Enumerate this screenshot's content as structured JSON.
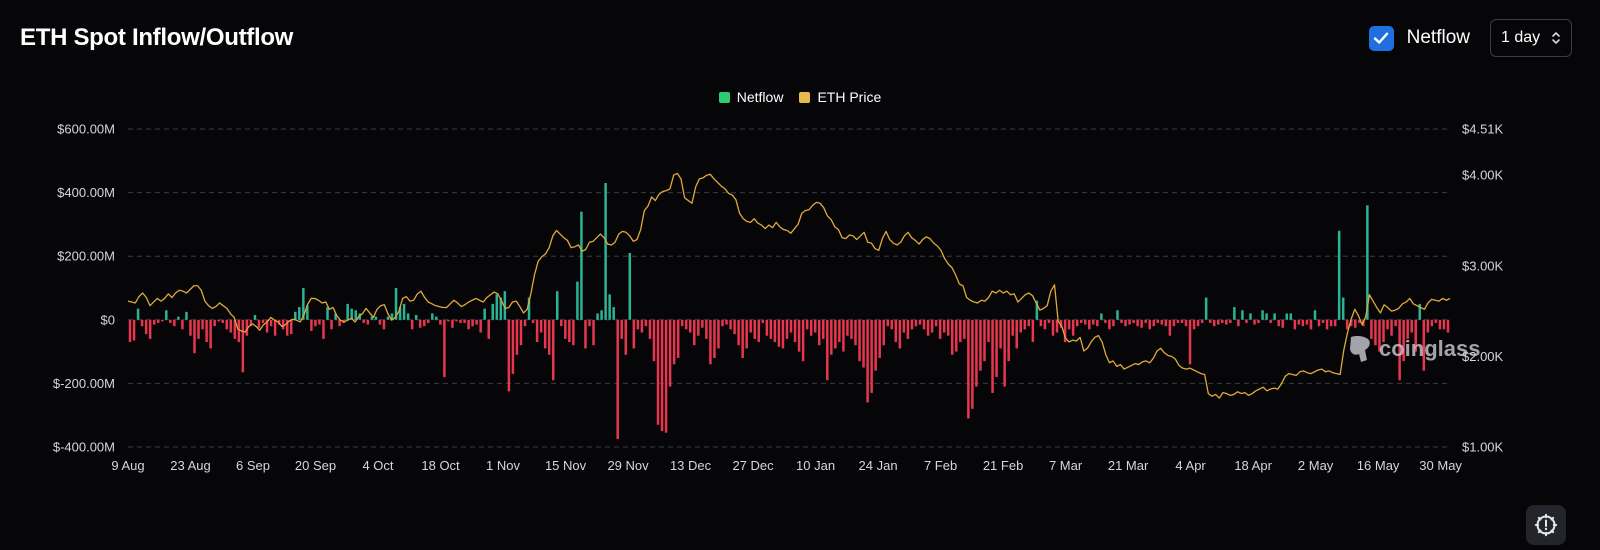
{
  "header": {
    "title": "ETH Spot Inflow/Outflow",
    "netflow_toggle_label": "Netflow",
    "netflow_checked": true,
    "interval_value": "1 day"
  },
  "watermark": {
    "text": "coinglass"
  },
  "colors": {
    "positive": "#2bb395",
    "negative": "#e8364f",
    "price": "#e0a93a",
    "checkbox": "#1f6fe0",
    "legend_netflow": "#2ecc71",
    "legend_price": "#e8b84a"
  },
  "icons": {
    "checkbox": "checkmark-icon",
    "select": "chevron-up-down-icon",
    "settings": "settings-alert-icon",
    "watermark": "coinglass-logo-icon"
  },
  "chart_data": {
    "type": "bar",
    "title": "ETH Spot Inflow/Outflow",
    "legend": [
      "Netflow",
      "ETH Price"
    ],
    "legend_position": "top-center",
    "grid": true,
    "x_tick_labels": [
      "9 Aug",
      "23 Aug",
      "6 Sep",
      "20 Sep",
      "4 Oct",
      "18 Oct",
      "1 Nov",
      "15 Nov",
      "29 Nov",
      "13 Dec",
      "27 Dec",
      "10 Jan",
      "24 Jan",
      "7 Feb",
      "21 Feb",
      "7 Mar",
      "21 Mar",
      "4 Apr",
      "18 Apr",
      "2 May",
      "16 May",
      "30 May"
    ],
    "x_range_days": [
      0,
      298
    ],
    "y_left": {
      "ylim": [
        -400,
        600
      ],
      "unit": "USD millions",
      "ticks": [
        600,
        400,
        200,
        0,
        -200,
        -400
      ],
      "tick_labels": [
        "$600.00M",
        "$400.00M",
        "$200.00M",
        "$0",
        "$-200.00M",
        "$-400.00M"
      ]
    },
    "y_right": {
      "ylim": [
        1000,
        4510
      ],
      "unit": "USD",
      "ticks": [
        4510,
        4000,
        3000,
        2000,
        1000
      ],
      "tick_labels": [
        "$4.51K",
        "$4.00K",
        "$3.00K",
        "$2.00K",
        "$1.00K"
      ]
    },
    "series": [
      {
        "name": "Netflow",
        "type": "bar",
        "values": [
          -70,
          -65,
          35,
          -20,
          -45,
          -60,
          -15,
          -10,
          -5,
          30,
          -10,
          -20,
          10,
          -30,
          25,
          -50,
          -105,
          -60,
          -30,
          -70,
          -90,
          -20,
          -5,
          -10,
          -30,
          -40,
          -60,
          -70,
          -165,
          -50,
          -20,
          15,
          -25,
          -10,
          -40,
          -20,
          -50,
          -15,
          -30,
          -50,
          -45,
          25,
          40,
          100,
          45,
          -35,
          -20,
          -15,
          -60,
          40,
          -30,
          20,
          -20,
          -10,
          50,
          35,
          30,
          20,
          -10,
          -15,
          10,
          10,
          -15,
          -30,
          10,
          20,
          100,
          40,
          50,
          20,
          -30,
          15,
          -25,
          -20,
          -10,
          20,
          10,
          -15,
          -180,
          -5,
          -25,
          -5,
          -10,
          -10,
          -30,
          -20,
          -15,
          -40,
          35,
          -60,
          50,
          80,
          70,
          90,
          -225,
          -170,
          -110,
          -80,
          -20,
          70,
          -10,
          -70,
          -40,
          -90,
          -110,
          -190,
          90,
          -20,
          -60,
          -70,
          -80,
          120,
          340,
          -90,
          -20,
          -80,
          20,
          30,
          430,
          80,
          40,
          -375,
          -60,
          -110,
          210,
          -90,
          -30,
          -40,
          -20,
          -60,
          -130,
          -330,
          -350,
          -355,
          -210,
          -140,
          -120,
          -20,
          -30,
          -40,
          -80,
          -50,
          -25,
          -60,
          -140,
          -120,
          -90,
          -20,
          -15,
          -30,
          -45,
          -80,
          -120,
          -90,
          -40,
          -60,
          -70,
          -10,
          -50,
          -60,
          -70,
          -85,
          -90,
          -60,
          -40,
          -70,
          -100,
          -130,
          -30,
          -50,
          -40,
          -80,
          -60,
          -190,
          -110,
          -90,
          -70,
          -100,
          -50,
          -60,
          -80,
          -130,
          -150,
          -260,
          -230,
          -160,
          -120,
          -80,
          -20,
          -30,
          -70,
          -90,
          -40,
          -60,
          -30,
          -20,
          -15,
          -30,
          -50,
          -40,
          -20,
          -60,
          -40,
          -50,
          -110,
          -100,
          -70,
          -60,
          -310,
          -280,
          -210,
          -160,
          -130,
          -70,
          -230,
          -180,
          -90,
          -210,
          -130,
          -50,
          -90,
          -40,
          -30,
          -20,
          -70,
          60,
          -20,
          -30,
          -10,
          -50,
          -40,
          -25,
          -70,
          -30,
          -50,
          -20,
          -10,
          -15,
          -30,
          -15,
          -20,
          20,
          -10,
          -30,
          -20,
          30,
          -10,
          -20,
          -15,
          -10,
          -20,
          -25,
          -10,
          -30,
          -20,
          -10,
          -15,
          -20,
          -50,
          -20,
          -10,
          -10,
          -20,
          -140,
          -30,
          -20,
          -10,
          70,
          -10,
          -20,
          -15,
          -10,
          -15,
          -10,
          40,
          -20,
          30,
          -10,
          20,
          -15,
          -10,
          30,
          20,
          -10,
          20,
          -20,
          -25,
          20,
          20,
          -30,
          -15,
          -20,
          -15,
          -30,
          30,
          -20,
          -10,
          -30,
          -20,
          -20,
          280,
          70,
          -30,
          -20,
          -25,
          -10,
          -20,
          360,
          -60,
          -80,
          -100,
          -70,
          -30,
          -50,
          -20,
          -190,
          -130,
          -60,
          -40,
          -100,
          50,
          -160,
          -40,
          -20,
          -10,
          -30,
          -30,
          -40
        ]
      },
      {
        "name": "ETH Price",
        "type": "line",
        "axis": "right",
        "values": [
          2610,
          2600,
          2590,
          2660,
          2700,
          2650,
          2560,
          2600,
          2640,
          2610,
          2640,
          2690,
          2650,
          2700,
          2730,
          2720,
          2700,
          2740,
          2780,
          2780,
          2730,
          2610,
          2560,
          2530,
          2550,
          2590,
          2560,
          2530,
          2470,
          2430,
          2300,
          2280,
          2270,
          2330,
          2360,
          2330,
          2290,
          2350,
          2380,
          2430,
          2400,
          2380,
          2330,
          2350,
          2390,
          2410,
          2400,
          2380,
          2450,
          2570,
          2640,
          2640,
          2620,
          2590,
          2600,
          2520,
          2540,
          2450,
          2400,
          2380,
          2400,
          2420,
          2380,
          2440,
          2470,
          2530,
          2480,
          2430,
          2520,
          2560,
          2570,
          2470,
          2400,
          2430,
          2500,
          2640,
          2660,
          2610,
          2620,
          2690,
          2720,
          2650,
          2600,
          2580,
          2560,
          2550,
          2540,
          2540,
          2580,
          2620,
          2590,
          2550,
          2570,
          2600,
          2620,
          2640,
          2620,
          2600,
          2650,
          2680,
          2710,
          2690,
          2610,
          2530,
          2540,
          2600,
          2610,
          2550,
          2480,
          2520,
          2690,
          2900,
          3050,
          3100,
          3130,
          3200,
          3330,
          3390,
          3350,
          3310,
          3280,
          3200,
          3210,
          3230,
          3160,
          3180,
          3260,
          3270,
          3310,
          3350,
          3310,
          3240,
          3230,
          3260,
          3350,
          3380,
          3370,
          3330,
          3270,
          3290,
          3400,
          3610,
          3660,
          3760,
          3720,
          3790,
          3820,
          3830,
          3850,
          4000,
          4020,
          3960,
          3750,
          3720,
          3690,
          3870,
          3960,
          3970,
          4000,
          4010,
          3960,
          3920,
          3880,
          3850,
          3800,
          3780,
          3730,
          3580,
          3520,
          3490,
          3480,
          3520,
          3470,
          3450,
          3410,
          3450,
          3420,
          3480,
          3430,
          3400,
          3390,
          3360,
          3410,
          3460,
          3580,
          3610,
          3620,
          3670,
          3700,
          3690,
          3640,
          3550,
          3510,
          3430,
          3400,
          3310,
          3300,
          3340,
          3330,
          3290,
          3330,
          3370,
          3260,
          3250,
          3190,
          3170,
          3300,
          3380,
          3290,
          3250,
          3230,
          3260,
          3330,
          3370,
          3310,
          3280,
          3240,
          3290,
          3320,
          3300,
          3250,
          3220,
          3170,
          3080,
          3020,
          2980,
          2900,
          2800,
          2780,
          2650,
          2620,
          2600,
          2590,
          2620,
          2610,
          2650,
          2720,
          2700,
          2730,
          2700,
          2720,
          2680,
          2690,
          2600,
          2640,
          2680,
          2700,
          2670,
          2590,
          2510,
          2530,
          2560,
          2720,
          2790,
          2390,
          2330,
          2200,
          2160,
          2180,
          2170,
          2210,
          2060,
          2090,
          2160,
          2210,
          2230,
          2160,
          2020,
          1930,
          1950,
          1890,
          1910,
          1860,
          1880,
          1900,
          1920,
          1910,
          1940,
          1950,
          1930,
          1980,
          2060,
          2090,
          2040,
          2010,
          2000,
          1970,
          1900,
          1870,
          1860,
          1870,
          1850,
          1830,
          1810,
          1800,
          1590,
          1560,
          1580,
          1540,
          1600,
          1590,
          1570,
          1580,
          1610,
          1590,
          1600,
          1570,
          1590,
          1620,
          1640,
          1660,
          1620,
          1640,
          1650,
          1640,
          1700,
          1780,
          1810,
          1800,
          1790,
          1830,
          1840,
          1820,
          1810,
          1830,
          1850,
          1860,
          1830,
          1840,
          1820,
          1810,
          1800,
          2070,
          2260,
          2410,
          2520,
          2450,
          2350,
          2440,
          2680,
          2610,
          2540,
          2480,
          2570,
          2540,
          2500,
          2510,
          2530,
          2580,
          2600,
          2640,
          2580,
          2560,
          2540,
          2520,
          2590,
          2630,
          2620,
          2610,
          2640,
          2620,
          2640
        ]
      }
    ]
  }
}
